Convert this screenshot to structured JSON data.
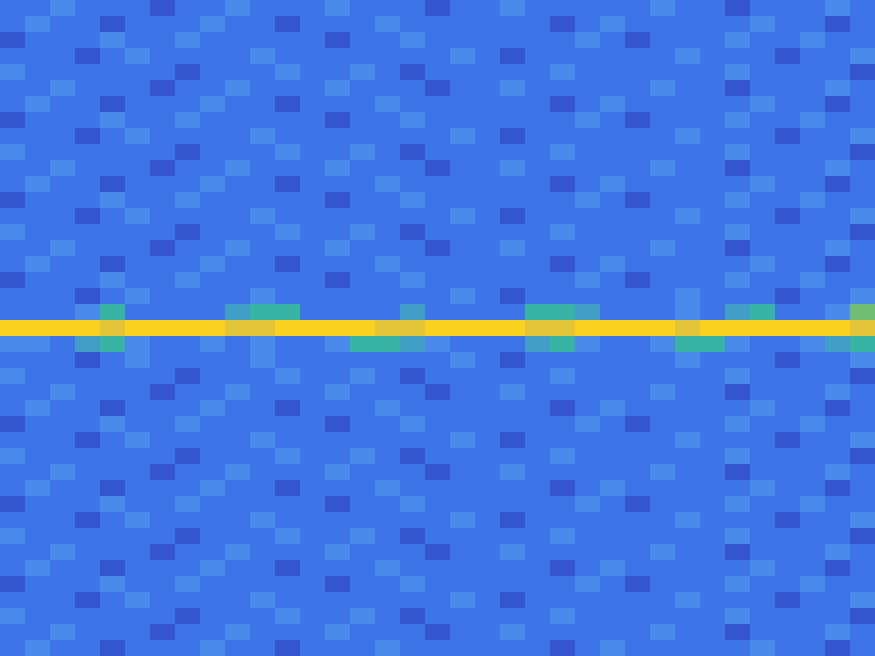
{
  "chart_data": {
    "type": "heatmap",
    "color": "parula",
    "tick_labels": false,
    "zlim": [
      0,
      10
    ],
    "cells": [
      [
        3,
        3,
        4,
        3,
        3,
        3,
        2,
        3,
        3,
        4,
        3,
        3,
        3,
        4,
        3,
        3,
        3,
        2,
        3,
        3,
        4,
        3,
        3,
        3,
        3,
        3,
        4,
        3,
        3,
        2,
        3,
        3,
        3,
        4,
        3
      ],
      [
        3,
        4,
        3,
        3,
        2,
        3,
        3,
        3,
        4,
        3,
        3,
        2,
        3,
        3,
        3,
        4,
        3,
        3,
        3,
        3,
        3,
        3,
        2,
        3,
        4,
        3,
        3,
        3,
        3,
        3,
        4,
        3,
        3,
        2,
        3
      ],
      [
        2,
        3,
        3,
        3,
        4,
        3,
        3,
        4,
        3,
        3,
        3,
        3,
        3,
        2,
        3,
        3,
        4,
        3,
        3,
        3,
        3,
        3,
        3,
        4,
        3,
        2,
        3,
        3,
        3,
        4,
        3,
        3,
        4,
        3,
        3
      ],
      [
        3,
        3,
        3,
        2,
        3,
        4,
        3,
        3,
        3,
        3,
        4,
        3,
        3,
        3,
        3,
        3,
        3,
        3,
        4,
        3,
        2,
        3,
        3,
        3,
        3,
        3,
        3,
        4,
        3,
        3,
        3,
        2,
        3,
        3,
        4
      ],
      [
        4,
        3,
        3,
        3,
        3,
        3,
        3,
        2,
        3,
        3,
        3,
        4,
        3,
        3,
        4,
        3,
        2,
        3,
        3,
        3,
        3,
        3,
        4,
        3,
        3,
        3,
        3,
        3,
        3,
        4,
        3,
        3,
        3,
        3,
        2
      ],
      [
        3,
        3,
        4,
        3,
        3,
        3,
        2,
        3,
        3,
        4,
        3,
        3,
        3,
        4,
        3,
        3,
        3,
        2,
        3,
        3,
        4,
        3,
        3,
        3,
        3,
        3,
        4,
        3,
        3,
        2,
        3,
        3,
        3,
        4,
        3
      ],
      [
        3,
        4,
        3,
        3,
        2,
        3,
        3,
        3,
        4,
        3,
        3,
        2,
        3,
        3,
        3,
        4,
        3,
        3,
        3,
        3,
        3,
        3,
        2,
        3,
        4,
        3,
        3,
        3,
        3,
        3,
        4,
        3,
        3,
        2,
        3
      ],
      [
        2,
        3,
        3,
        3,
        4,
        3,
        3,
        4,
        3,
        3,
        3,
        3,
        3,
        2,
        3,
        3,
        4,
        3,
        3,
        3,
        3,
        3,
        3,
        4,
        3,
        2,
        3,
        3,
        3,
        4,
        3,
        3,
        4,
        3,
        3
      ],
      [
        3,
        3,
        3,
        2,
        3,
        4,
        3,
        3,
        3,
        3,
        4,
        3,
        3,
        3,
        3,
        3,
        3,
        3,
        4,
        3,
        2,
        3,
        3,
        3,
        3,
        3,
        3,
        4,
        3,
        3,
        3,
        2,
        3,
        3,
        4
      ],
      [
        4,
        3,
        3,
        3,
        3,
        3,
        3,
        2,
        3,
        3,
        3,
        4,
        3,
        3,
        4,
        3,
        2,
        3,
        3,
        3,
        3,
        3,
        4,
        3,
        3,
        3,
        3,
        3,
        3,
        4,
        3,
        3,
        3,
        3,
        2
      ],
      [
        3,
        3,
        4,
        3,
        3,
        3,
        2,
        3,
        3,
        4,
        3,
        3,
        3,
        4,
        3,
        3,
        3,
        2,
        3,
        3,
        4,
        3,
        3,
        3,
        3,
        3,
        4,
        3,
        3,
        2,
        3,
        3,
        3,
        4,
        3
      ],
      [
        3,
        4,
        3,
        3,
        2,
        3,
        3,
        3,
        4,
        3,
        3,
        2,
        3,
        3,
        3,
        4,
        3,
        3,
        3,
        3,
        3,
        3,
        2,
        3,
        4,
        3,
        3,
        3,
        3,
        3,
        4,
        3,
        3,
        2,
        3
      ],
      [
        2,
        3,
        3,
        3,
        4,
        3,
        3,
        4,
        3,
        3,
        3,
        3,
        3,
        2,
        3,
        3,
        4,
        3,
        3,
        3,
        3,
        3,
        3,
        4,
        3,
        2,
        3,
        3,
        3,
        4,
        3,
        3,
        4,
        3,
        3
      ],
      [
        3,
        3,
        3,
        2,
        3,
        4,
        3,
        3,
        3,
        3,
        4,
        3,
        3,
        3,
        3,
        3,
        3,
        3,
        4,
        3,
        2,
        3,
        3,
        3,
        3,
        3,
        3,
        4,
        3,
        3,
        3,
        2,
        3,
        3,
        4
      ],
      [
        4,
        3,
        3,
        3,
        3,
        3,
        3,
        2,
        3,
        3,
        3,
        4,
        3,
        3,
        4,
        3,
        2,
        3,
        3,
        3,
        3,
        3,
        4,
        3,
        3,
        3,
        3,
        3,
        3,
        4,
        3,
        3,
        3,
        3,
        2
      ],
      [
        3,
        3,
        4,
        3,
        3,
        3,
        2,
        3,
        3,
        4,
        3,
        3,
        3,
        4,
        3,
        3,
        3,
        2,
        3,
        3,
        4,
        3,
        3,
        3,
        3,
        3,
        4,
        3,
        3,
        2,
        3,
        3,
        3,
        4,
        3
      ],
      [
        3,
        4,
        3,
        3,
        2,
        3,
        3,
        3,
        4,
        3,
        3,
        2,
        3,
        3,
        3,
        4,
        3,
        3,
        3,
        3,
        3,
        3,
        2,
        3,
        4,
        3,
        3,
        3,
        3,
        3,
        4,
        3,
        3,
        2,
        3
      ],
      [
        2,
        3,
        3,
        3,
        4,
        3,
        3,
        4,
        3,
        3,
        3,
        3,
        3,
        2,
        3,
        3,
        4,
        3,
        3,
        3,
        3,
        3,
        3,
        4,
        3,
        2,
        3,
        3,
        3,
        4,
        3,
        3,
        4,
        3,
        3
      ],
      [
        3,
        3,
        3,
        2,
        3,
        4,
        3,
        3,
        3,
        3,
        4,
        3,
        3,
        3,
        3,
        3,
        3,
        3,
        4,
        3,
        2,
        3,
        3,
        3,
        3,
        3,
        3,
        4,
        3,
        3,
        3,
        2,
        3,
        3,
        4
      ],
      [
        3,
        3,
        3,
        4,
        6,
        3,
        3,
        3,
        3,
        5,
        6,
        6,
        3,
        3,
        3,
        3,
        5,
        3,
        3,
        3,
        3,
        6,
        6,
        5,
        3,
        3,
        3,
        4,
        3,
        5,
        6,
        3,
        3,
        4,
        7
      ],
      [
        10,
        10,
        10,
        10,
        9,
        10,
        10,
        10,
        10,
        9,
        9,
        10,
        10,
        10,
        10,
        9,
        9,
        10,
        10,
        10,
        10,
        9,
        9,
        10,
        10,
        10,
        10,
        9,
        10,
        10,
        10,
        10,
        10,
        10,
        9
      ],
      [
        4,
        4,
        3,
        5,
        6,
        4,
        3,
        3,
        4,
        3,
        4,
        3,
        3,
        4,
        6,
        6,
        5,
        4,
        3,
        3,
        3,
        5,
        6,
        4,
        3,
        3,
        4,
        6,
        6,
        4,
        3,
        3,
        4,
        5,
        6
      ],
      [
        3,
        3,
        3,
        2,
        3,
        4,
        3,
        3,
        3,
        3,
        4,
        3,
        3,
        3,
        3,
        3,
        3,
        3,
        4,
        3,
        2,
        3,
        3,
        3,
        3,
        3,
        3,
        4,
        3,
        3,
        3,
        2,
        3,
        3,
        4
      ],
      [
        4,
        3,
        3,
        3,
        3,
        3,
        3,
        2,
        3,
        3,
        3,
        4,
        3,
        3,
        4,
        3,
        2,
        3,
        3,
        3,
        3,
        3,
        4,
        3,
        3,
        3,
        3,
        3,
        3,
        4,
        3,
        3,
        3,
        3,
        2
      ],
      [
        3,
        3,
        4,
        3,
        3,
        3,
        2,
        3,
        3,
        4,
        3,
        3,
        3,
        4,
        3,
        3,
        3,
        2,
        3,
        3,
        4,
        3,
        3,
        3,
        3,
        3,
        4,
        3,
        3,
        2,
        3,
        3,
        3,
        4,
        3
      ],
      [
        3,
        4,
        3,
        3,
        2,
        3,
        3,
        3,
        4,
        3,
        3,
        2,
        3,
        3,
        3,
        4,
        3,
        3,
        3,
        3,
        3,
        3,
        2,
        3,
        4,
        3,
        3,
        3,
        3,
        3,
        4,
        3,
        3,
        2,
        3
      ],
      [
        2,
        3,
        3,
        3,
        4,
        3,
        3,
        4,
        3,
        3,
        3,
        3,
        3,
        2,
        3,
        3,
        4,
        3,
        3,
        3,
        3,
        3,
        3,
        4,
        3,
        2,
        3,
        3,
        3,
        4,
        3,
        3,
        4,
        3,
        3
      ],
      [
        3,
        3,
        3,
        2,
        3,
        4,
        3,
        3,
        3,
        3,
        4,
        3,
        3,
        3,
        3,
        3,
        3,
        3,
        4,
        3,
        2,
        3,
        3,
        3,
        3,
        3,
        3,
        4,
        3,
        3,
        3,
        2,
        3,
        3,
        4
      ],
      [
        4,
        3,
        3,
        3,
        3,
        3,
        3,
        2,
        3,
        3,
        3,
        4,
        3,
        3,
        4,
        3,
        2,
        3,
        3,
        3,
        3,
        3,
        4,
        3,
        3,
        3,
        3,
        3,
        3,
        4,
        3,
        3,
        3,
        3,
        2
      ],
      [
        3,
        3,
        4,
        3,
        3,
        3,
        2,
        3,
        3,
        4,
        3,
        3,
        3,
        4,
        3,
        3,
        3,
        2,
        3,
        3,
        4,
        3,
        3,
        3,
        3,
        3,
        4,
        3,
        3,
        2,
        3,
        3,
        3,
        4,
        3
      ],
      [
        3,
        4,
        3,
        3,
        2,
        3,
        3,
        3,
        4,
        3,
        3,
        2,
        3,
        3,
        3,
        4,
        3,
        3,
        3,
        3,
        3,
        3,
        2,
        3,
        4,
        3,
        3,
        3,
        3,
        3,
        4,
        3,
        3,
        2,
        3
      ],
      [
        2,
        3,
        3,
        3,
        4,
        3,
        3,
        4,
        3,
        3,
        3,
        3,
        3,
        2,
        3,
        3,
        4,
        3,
        3,
        3,
        3,
        3,
        3,
        4,
        3,
        2,
        3,
        3,
        3,
        4,
        3,
        3,
        4,
        3,
        3
      ],
      [
        3,
        3,
        3,
        2,
        3,
        4,
        3,
        3,
        3,
        3,
        4,
        3,
        3,
        3,
        3,
        3,
        3,
        3,
        4,
        3,
        2,
        3,
        3,
        3,
        3,
        3,
        3,
        4,
        3,
        3,
        3,
        2,
        3,
        3,
        4
      ],
      [
        4,
        3,
        3,
        3,
        3,
        3,
        3,
        2,
        3,
        3,
        3,
        4,
        3,
        3,
        4,
        3,
        2,
        3,
        3,
        3,
        3,
        3,
        4,
        3,
        3,
        3,
        3,
        3,
        3,
        4,
        3,
        3,
        3,
        3,
        2
      ],
      [
        3,
        3,
        4,
        3,
        3,
        3,
        2,
        3,
        3,
        4,
        3,
        3,
        3,
        4,
        3,
        3,
        3,
        2,
        3,
        3,
        4,
        3,
        3,
        3,
        3,
        3,
        4,
        3,
        3,
        2,
        3,
        3,
        3,
        4,
        3
      ],
      [
        3,
        4,
        3,
        3,
        2,
        3,
        3,
        3,
        4,
        3,
        3,
        2,
        3,
        3,
        3,
        4,
        3,
        3,
        3,
        3,
        3,
        3,
        2,
        3,
        4,
        3,
        3,
        3,
        3,
        3,
        4,
        3,
        3,
        2,
        3
      ],
      [
        2,
        3,
        3,
        3,
        4,
        3,
        3,
        4,
        3,
        3,
        3,
        3,
        3,
        2,
        3,
        3,
        4,
        3,
        3,
        3,
        3,
        3,
        3,
        4,
        3,
        2,
        3,
        3,
        3,
        4,
        3,
        3,
        4,
        3,
        3
      ],
      [
        3,
        3,
        3,
        2,
        3,
        4,
        3,
        3,
        3,
        3,
        4,
        3,
        3,
        3,
        3,
        3,
        3,
        3,
        4,
        3,
        2,
        3,
        3,
        3,
        3,
        3,
        3,
        4,
        3,
        3,
        3,
        2,
        3,
        3,
        4
      ],
      [
        4,
        3,
        3,
        3,
        3,
        3,
        3,
        2,
        3,
        3,
        3,
        4,
        3,
        3,
        4,
        3,
        2,
        3,
        3,
        3,
        3,
        3,
        4,
        3,
        3,
        3,
        3,
        3,
        3,
        4,
        3,
        3,
        3,
        3,
        2
      ],
      [
        3,
        3,
        4,
        3,
        3,
        3,
        2,
        3,
        3,
        4,
        3,
        3,
        3,
        4,
        3,
        3,
        3,
        2,
        3,
        3,
        4,
        3,
        3,
        3,
        3,
        3,
        4,
        3,
        3,
        2,
        3,
        3,
        3,
        4,
        3
      ],
      [
        3,
        4,
        3,
        3,
        2,
        3,
        3,
        3,
        4,
        3,
        3,
        2,
        3,
        3,
        3,
        4,
        3,
        3,
        3,
        3,
        3,
        3,
        2,
        3,
        4,
        3,
        3,
        3,
        3,
        3,
        4,
        3,
        3,
        2,
        3
      ]
    ]
  }
}
